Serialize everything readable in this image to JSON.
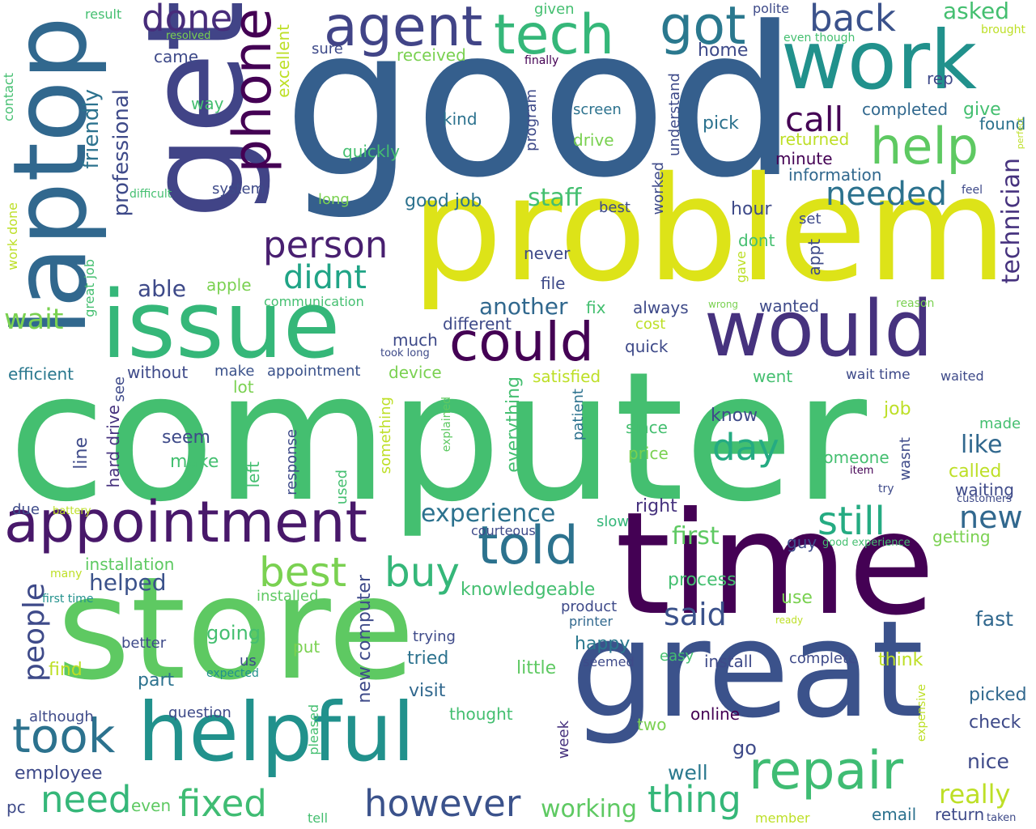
{
  "words": [
    {
      "t": "good",
      "c": "#355f8d"
    },
    {
      "t": "computer",
      "c": "#44bf70"
    },
    {
      "t": "problem",
      "c": "#dde318"
    },
    {
      "t": "time",
      "c": "#440154"
    },
    {
      "t": "store",
      "c": "#5ec962"
    },
    {
      "t": "get",
      "c": "#414487"
    },
    {
      "t": "great",
      "c": "#3b528b"
    },
    {
      "t": "laptop",
      "c": "#31688e"
    },
    {
      "t": "issue",
      "c": "#35b779"
    },
    {
      "t": "helpful",
      "c": "#21918c"
    },
    {
      "t": "work",
      "c": "#21918c"
    },
    {
      "t": "would",
      "c": "#46327e"
    },
    {
      "t": "appointment",
      "c": "#48186a"
    },
    {
      "t": "agent",
      "c": "#414487"
    },
    {
      "t": "tech",
      "c": "#35b779"
    },
    {
      "t": "phone",
      "c": "#440154"
    },
    {
      "t": "got",
      "c": "#2a788e"
    },
    {
      "t": "could",
      "c": "#440154"
    },
    {
      "t": "told",
      "c": "#2c728e"
    },
    {
      "t": "repair",
      "c": "#3fbc73"
    },
    {
      "t": "help",
      "c": "#5ec962"
    },
    {
      "t": "took",
      "c": "#2c728e"
    },
    {
      "t": "done",
      "c": "#472c7a"
    },
    {
      "t": "back",
      "c": "#3b528b"
    },
    {
      "t": "person",
      "c": "#481f70"
    },
    {
      "t": "didnt",
      "c": "#20a486"
    },
    {
      "t": "still",
      "c": "#25ab82"
    },
    {
      "t": "buy",
      "c": "#35b779"
    },
    {
      "t": "best",
      "c": "#7ad151"
    },
    {
      "t": "day",
      "c": "#25ab82"
    },
    {
      "t": "need",
      "c": "#35b779"
    },
    {
      "t": "fixed",
      "c": "#3fbc73"
    },
    {
      "t": "however",
      "c": "#3b528b"
    },
    {
      "t": "thing",
      "c": "#35b779"
    },
    {
      "t": "needed",
      "c": "#2c728e"
    },
    {
      "t": "call",
      "c": "#440154"
    },
    {
      "t": "technician",
      "c": "#46327e"
    },
    {
      "t": "people",
      "c": "#3e4a89"
    },
    {
      "t": "said",
      "c": "#3b528b"
    },
    {
      "t": "new",
      "c": "#31688e"
    },
    {
      "t": "really",
      "c": "#bddf26"
    },
    {
      "t": "experience",
      "c": "#2c728e"
    },
    {
      "t": "wait",
      "c": "#7ad151"
    },
    {
      "t": "another",
      "c": "#31688e"
    },
    {
      "t": "staff",
      "c": "#44bf70"
    },
    {
      "t": "friendly",
      "c": "#2c728e"
    },
    {
      "t": "professional",
      "c": "#3e4a89"
    },
    {
      "t": "helped",
      "c": "#3b528b"
    },
    {
      "t": "able",
      "c": "#3e4a89"
    },
    {
      "t": "working",
      "c": "#5ec962"
    },
    {
      "t": "first",
      "c": "#5ec962"
    },
    {
      "t": "like",
      "c": "#31688e"
    },
    {
      "t": "asked",
      "c": "#44bf70"
    },
    {
      "t": "efficient",
      "c": "#2a788e"
    },
    {
      "t": "employee",
      "c": "#3e4a89"
    },
    {
      "t": "well",
      "c": "#2a788e"
    },
    {
      "t": "nice",
      "c": "#3e4a89"
    },
    {
      "t": "fast",
      "c": "#31688e"
    },
    {
      "t": "check",
      "c": "#3e4a89"
    },
    {
      "t": "picked",
      "c": "#31688e"
    },
    {
      "t": "email",
      "c": "#2c728e"
    },
    {
      "t": "return",
      "c": "#3e4a89"
    },
    {
      "t": "new computer",
      "c": "#3e4a89"
    },
    {
      "t": "hard drive",
      "c": "#46327e"
    },
    {
      "t": "installation",
      "c": "#5ec962"
    },
    {
      "t": "appointment",
      "c": "#3b528b"
    },
    {
      "t": "without",
      "c": "#3e4a89"
    },
    {
      "t": "make",
      "c": "#3b528b"
    },
    {
      "t": "device",
      "c": "#7ad151"
    },
    {
      "t": "satisfied",
      "c": "#bddf26"
    },
    {
      "t": "went",
      "c": "#44bf70"
    },
    {
      "t": "wait time",
      "c": "#3e4a89"
    },
    {
      "t": "waited",
      "c": "#3e4a89"
    },
    {
      "t": "job",
      "c": "#bddf26"
    },
    {
      "t": "made",
      "c": "#44bf70"
    },
    {
      "t": "called",
      "c": "#bddf26"
    },
    {
      "t": "waiting",
      "c": "#3e4a89"
    },
    {
      "t": "customers",
      "c": "#3e4a89"
    },
    {
      "t": "getting",
      "c": "#7ad151"
    },
    {
      "t": "good experience",
      "c": "#44bf70"
    },
    {
      "t": "guy",
      "c": "#3e4a89"
    },
    {
      "t": "right",
      "c": "#46327e"
    },
    {
      "t": "slow",
      "c": "#35b779"
    },
    {
      "t": "courteous",
      "c": "#3e4a89"
    },
    {
      "t": "process",
      "c": "#44bf70"
    },
    {
      "t": "use",
      "c": "#7ad151"
    },
    {
      "t": "ready",
      "c": "#bddf26"
    },
    {
      "t": "product",
      "c": "#3e4a89"
    },
    {
      "t": "printer",
      "c": "#31688e"
    },
    {
      "t": "knowledgeable",
      "c": "#44bf70"
    },
    {
      "t": "trying",
      "c": "#3e4a89"
    },
    {
      "t": "happy",
      "c": "#2a788e"
    },
    {
      "t": "tried",
      "c": "#2c728e"
    },
    {
      "t": "seemed",
      "c": "#3e4a89"
    },
    {
      "t": "little",
      "c": "#5ec962"
    },
    {
      "t": "easy",
      "c": "#44bf70"
    },
    {
      "t": "install",
      "c": "#3e4a89"
    },
    {
      "t": "complete",
      "c": "#3e4a89"
    },
    {
      "t": "think",
      "c": "#bddf26"
    },
    {
      "t": "visit",
      "c": "#31688e"
    },
    {
      "t": "thought",
      "c": "#44bf70"
    },
    {
      "t": "two",
      "c": "#7ad151"
    },
    {
      "t": "online",
      "c": "#440154"
    },
    {
      "t": "go",
      "c": "#3e4a89"
    },
    {
      "t": "week",
      "c": "#46327e"
    },
    {
      "t": "expensive",
      "c": "#bddf26"
    },
    {
      "t": "member",
      "c": "#bddf26"
    },
    {
      "t": "tell",
      "c": "#44bf70"
    },
    {
      "t": "taken",
      "c": "#3e4a89"
    },
    {
      "t": "even",
      "c": "#5ec962"
    },
    {
      "t": "pc",
      "c": "#3e4a89"
    },
    {
      "t": "pleased",
      "c": "#44bf70"
    },
    {
      "t": "although",
      "c": "#3e4a89"
    },
    {
      "t": "question",
      "c": "#3e4a89"
    },
    {
      "t": "better",
      "c": "#3e4a89"
    },
    {
      "t": "expected",
      "c": "#21918c"
    },
    {
      "t": "us",
      "c": "#3e4a89"
    },
    {
      "t": "part",
      "c": "#2c728e"
    },
    {
      "t": "find",
      "c": "#bddf26"
    },
    {
      "t": "put",
      "c": "#7ad151"
    },
    {
      "t": "going",
      "c": "#44bf70"
    },
    {
      "t": "first time",
      "c": "#21918c"
    },
    {
      "t": "many",
      "c": "#bddf26"
    },
    {
      "t": "installed",
      "c": "#5ec962"
    },
    {
      "t": "battery",
      "c": "#bddf26"
    },
    {
      "t": "due",
      "c": "#3e4a89"
    },
    {
      "t": "left",
      "c": "#44bf70"
    },
    {
      "t": "response",
      "c": "#3e4a89"
    },
    {
      "t": "used",
      "c": "#44bf70"
    },
    {
      "t": "something",
      "c": "#bddf26"
    },
    {
      "t": "explained",
      "c": "#5ec962"
    },
    {
      "t": "everything",
      "c": "#44bf70"
    },
    {
      "t": "patient",
      "c": "#2c728e"
    },
    {
      "t": "since",
      "c": "#44bf70"
    },
    {
      "t": "price",
      "c": "#7ad151"
    },
    {
      "t": "know",
      "c": "#3e4a89"
    },
    {
      "t": "someone",
      "c": "#44bf70"
    },
    {
      "t": "wasnt",
      "c": "#3e4a89"
    },
    {
      "t": "item",
      "c": "#440154"
    },
    {
      "t": "try",
      "c": "#3e4a89"
    },
    {
      "t": "seem",
      "c": "#3e4a89"
    },
    {
      "t": "make",
      "c": "#44bf70"
    },
    {
      "t": "line",
      "c": "#3e4a89"
    },
    {
      "t": "see",
      "c": "#3e4a89"
    },
    {
      "t": "lot",
      "c": "#7ad151"
    },
    {
      "t": "took long",
      "c": "#3e4a89"
    },
    {
      "t": "much",
      "c": "#3e4a89"
    },
    {
      "t": "different",
      "c": "#3e4a89"
    },
    {
      "t": "fix",
      "c": "#44bf70"
    },
    {
      "t": "always",
      "c": "#3e4a89"
    },
    {
      "t": "quick",
      "c": "#3e4a89"
    },
    {
      "t": "cost",
      "c": "#bddf26"
    },
    {
      "t": "wrong",
      "c": "#7ad151"
    },
    {
      "t": "wanted",
      "c": "#3e4a89"
    },
    {
      "t": "reason",
      "c": "#7ad151"
    },
    {
      "t": "communication",
      "c": "#44bf70"
    },
    {
      "t": "apple",
      "c": "#7ad151"
    },
    {
      "t": "file",
      "c": "#3e4a89"
    },
    {
      "t": "never",
      "c": "#3e4a89"
    },
    {
      "t": "gave",
      "c": "#bddf26"
    },
    {
      "t": "dont",
      "c": "#44bf70"
    },
    {
      "t": "appt",
      "c": "#3e4a89"
    },
    {
      "t": "set",
      "c": "#3e4a89"
    },
    {
      "t": "hour",
      "c": "#3e4a89"
    },
    {
      "t": "best",
      "c": "#3e4a89"
    },
    {
      "t": "worked",
      "c": "#3e4a89"
    },
    {
      "t": "understand",
      "c": "#3e4a89"
    },
    {
      "t": "feel",
      "c": "#3e4a89"
    },
    {
      "t": "information",
      "c": "#31688e"
    },
    {
      "t": "minute",
      "c": "#440154"
    },
    {
      "t": "returned",
      "c": "#bddf26"
    },
    {
      "t": "found",
      "c": "#2c728e"
    },
    {
      "t": "perfect",
      "c": "#bddf26"
    },
    {
      "t": "give",
      "c": "#44bf70"
    },
    {
      "t": "completed",
      "c": "#31688e"
    },
    {
      "t": "rep",
      "c": "#3e4a89"
    },
    {
      "t": "drive",
      "c": "#7ad151"
    },
    {
      "t": "screen",
      "c": "#2c728e"
    },
    {
      "t": "pick",
      "c": "#2c728e"
    },
    {
      "t": "home",
      "c": "#3e4a89"
    },
    {
      "t": "polite",
      "c": "#3e4a89"
    },
    {
      "t": "even though",
      "c": "#44bf70"
    },
    {
      "t": "brought",
      "c": "#bddf26"
    },
    {
      "t": "finally",
      "c": "#440154"
    },
    {
      "t": "program",
      "c": "#3e4a89"
    },
    {
      "t": "given",
      "c": "#44bf70"
    },
    {
      "t": "kind",
      "c": "#2c728e"
    },
    {
      "t": "good job",
      "c": "#2c728e"
    },
    {
      "t": "system",
      "c": "#3e4a89"
    },
    {
      "t": "long",
      "c": "#7ad151"
    },
    {
      "t": "quickly",
      "c": "#44bf70"
    },
    {
      "t": "sure",
      "c": "#3e4a89"
    },
    {
      "t": "received",
      "c": "#7ad151"
    },
    {
      "t": "excellent",
      "c": "#bddf26"
    },
    {
      "t": "way",
      "c": "#44bf70"
    },
    {
      "t": "came",
      "c": "#3e4a89"
    },
    {
      "t": "result",
      "c": "#44bf70"
    },
    {
      "t": "resolved",
      "c": "#7ad151"
    },
    {
      "t": "difficult",
      "c": "#44bf70"
    },
    {
      "t": "contact",
      "c": "#44bf70"
    },
    {
      "t": "work done",
      "c": "#bddf26"
    },
    {
      "t": "great job",
      "c": "#44bf70"
    }
  ]
}
